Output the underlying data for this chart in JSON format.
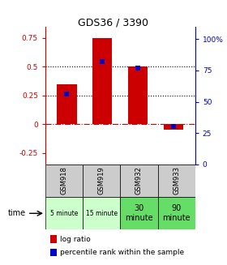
{
  "title": "GDS36 / 3390",
  "samples": [
    "GSM918",
    "GSM919",
    "GSM932",
    "GSM933"
  ],
  "time_labels": [
    "5 minute",
    "15 minute",
    "30\nminute",
    "90\nminute"
  ],
  "log_ratios": [
    0.35,
    0.75,
    0.5,
    -0.05
  ],
  "percentile_ranks": [
    56,
    82,
    77,
    30
  ],
  "ylim_left": [
    -0.35,
    0.85
  ],
  "ylim_right": [
    0,
    110
  ],
  "yticks_left": [
    -0.25,
    0,
    0.25,
    0.5,
    0.75
  ],
  "ytick_labels_left": [
    "-0.25",
    "0",
    "0.25",
    "0.5",
    "0.75"
  ],
  "yticks_right": [
    0,
    25,
    50,
    75,
    100
  ],
  "ytick_labels_right": [
    "0",
    "25",
    "50",
    "75",
    "100%"
  ],
  "bar_color": "#CC0000",
  "dot_color": "#0000CC",
  "zero_line_color": "#CC0000",
  "bar_width": 0.55,
  "time_bg_light": "#CCFFCC",
  "time_bg_medium": "#66DD66",
  "sample_bg": "#CCCCCC",
  "legend_bar_label": "log ratio",
  "legend_dot_label": "percentile rank within the sample",
  "time_row_label": "time"
}
